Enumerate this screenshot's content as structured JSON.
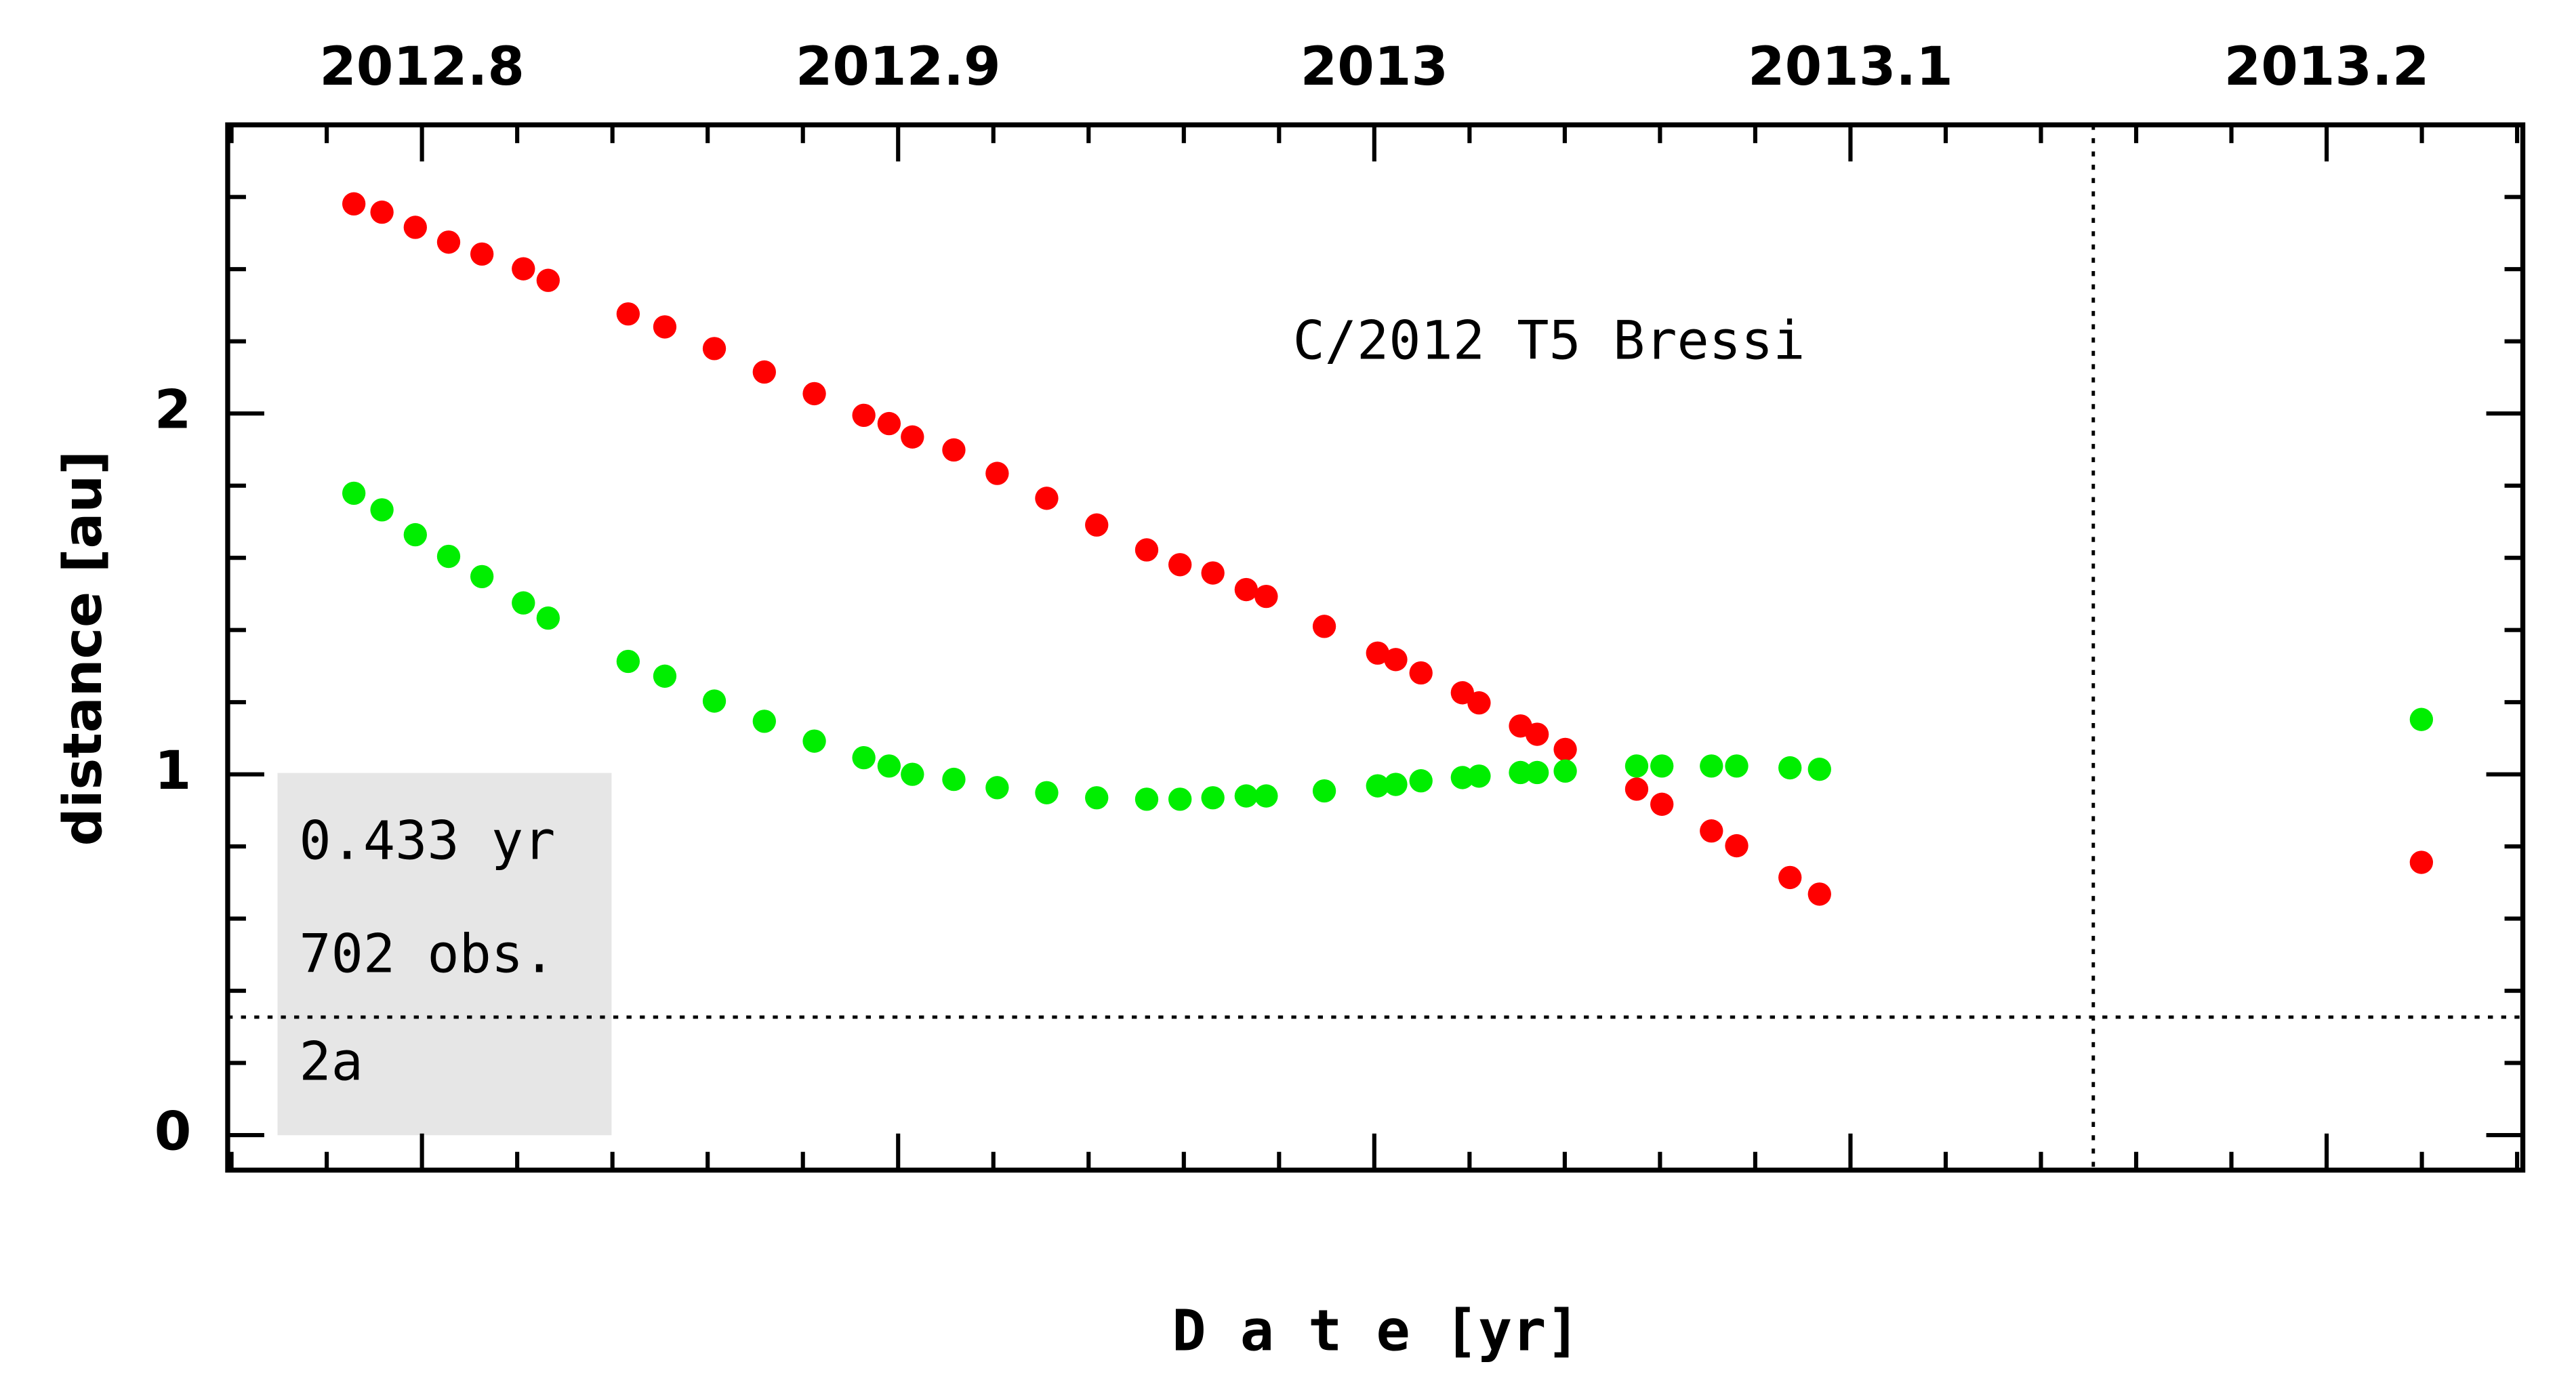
{
  "chart_data": {
    "type": "scatter",
    "title": "C/2012 T5 Bressi",
    "xlabel": "D a t e [yr]",
    "ylabel": "distance [au]",
    "annotations": [
      "0.433 yr",
      "702 obs.",
      "2a"
    ],
    "x": [
      2012.7857,
      2012.7916,
      2012.7986,
      2012.8056,
      2012.8126,
      2012.8213,
      2012.8265,
      2012.8433,
      2012.851,
      2012.8614,
      2012.8719,
      2012.8824,
      2012.8928,
      2012.8981,
      2012.903,
      2012.9117,
      2012.9208,
      2012.9312,
      2012.9417,
      2012.9522,
      2012.9592,
      2012.9661,
      2012.9731,
      2012.9773,
      2012.9895,
      2013.0007,
      2013.0045,
      2013.0098,
      2013.0185,
      2013.022,
      2013.0307,
      2013.0342,
      2013.0401,
      2013.0551,
      2013.0604,
      2013.0708,
      2013.0761,
      2013.0873,
      2013.0935,
      2013.2199
    ],
    "series": [
      {
        "color": "#ff0000",
        "values": [
          2.581,
          2.558,
          2.516,
          2.475,
          2.442,
          2.401,
          2.369,
          2.276,
          2.24,
          2.18,
          2.115,
          2.055,
          1.995,
          1.972,
          1.935,
          1.899,
          1.834,
          1.765,
          1.691,
          1.622,
          1.581,
          1.558,
          1.512,
          1.493,
          1.41,
          1.336,
          1.318,
          1.281,
          1.226,
          1.198,
          1.134,
          1.111,
          1.069,
          0.959,
          0.917,
          0.843,
          0.802,
          0.714,
          0.668,
          0.756
        ]
      },
      {
        "color": "#00ee00",
        "values": [
          1.779,
          1.733,
          1.664,
          1.604,
          1.548,
          1.475,
          1.433,
          1.313,
          1.272,
          1.203,
          1.147,
          1.092,
          1.046,
          1.023,
          1.0,
          0.986,
          0.963,
          0.949,
          0.935,
          0.931,
          0.931,
          0.935,
          0.94,
          0.94,
          0.954,
          0.968,
          0.972,
          0.982,
          0.991,
          0.995,
          1.005,
          1.005,
          1.009,
          1.023,
          1.023,
          1.023,
          1.023,
          1.018,
          1.014,
          1.152
        ]
      }
    ],
    "xlim": [
      2012.7592,
      2013.2412
    ],
    "ylim": [
      -0.097,
      2.8
    ],
    "xticks": [
      2012.8,
      2012.9,
      2013,
      2013.1,
      2013.2
    ],
    "yticks": [
      0,
      1,
      2
    ],
    "xminorticks": [
      2012.76,
      2012.78,
      2012.82,
      2012.84,
      2012.86,
      2012.88,
      2012.92,
      2012.94,
      2012.96,
      2012.98,
      2013.02,
      2013.04,
      2013.06,
      2013.08,
      2013.12,
      2013.14,
      2013.16,
      2013.18,
      2013.22,
      2013.24
    ],
    "yminorticks": [
      0.2,
      0.4,
      0.6,
      0.8,
      1.2,
      1.4,
      1.6,
      1.8,
      2.2,
      2.4,
      2.6
    ],
    "reference_lines": {
      "x": 2013.151,
      "y": 0.327
    }
  }
}
